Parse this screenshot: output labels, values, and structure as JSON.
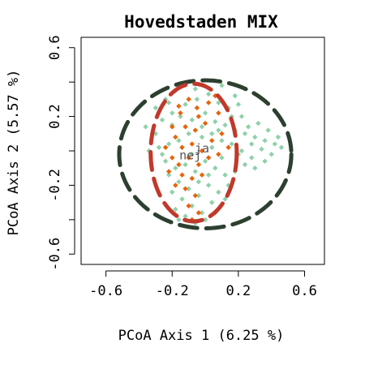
{
  "chart_data": {
    "type": "scatter",
    "title": "Hovedstaden MIX",
    "xlabel": "PCoA Axis 1 (6.25 %)",
    "ylabel": "PCoA Axis 2 (5.57 %)",
    "xlim": [
      -0.75,
      0.72
    ],
    "ylim": [
      -0.66,
      0.66
    ],
    "x_ticks": [
      -0.6,
      -0.2,
      0.2,
      0.6
    ],
    "x_tick_labels": [
      "-0.6",
      "-0.2",
      "0.2",
      "0.6"
    ],
    "y_ticks": [
      -0.6,
      -0.2,
      0.2,
      0.6
    ],
    "y_tick_labels": [
      "-0.6",
      "-0.2",
      "0.2",
      "0.6"
    ],
    "y_minor_ticks": [
      -0.4,
      0.0,
      0.4
    ],
    "grid": false,
    "legend": "none",
    "series": [
      {
        "name": "ja",
        "color": "#8fd1aa",
        "centroid": [
          -0.02,
          -0.01
        ],
        "ellipse": {
          "cx": 0.0,
          "cy": -0.02,
          "rx": 0.52,
          "ry": 0.43
        },
        "ellipse_color": "#2d4030",
        "points": [
          [
            -0.3,
            0.25
          ],
          [
            -0.22,
            0.28
          ],
          [
            -0.18,
            0.35
          ],
          [
            -0.12,
            0.27
          ],
          [
            -0.05,
            0.3
          ],
          [
            0.02,
            0.33
          ],
          [
            0.08,
            0.28
          ],
          [
            0.14,
            0.25
          ],
          [
            0.2,
            0.27
          ],
          [
            -0.26,
            0.18
          ],
          [
            -0.2,
            0.15
          ],
          [
            -0.15,
            0.2
          ],
          [
            -0.08,
            0.18
          ],
          [
            0.0,
            0.22
          ],
          [
            0.06,
            0.17
          ],
          [
            0.12,
            0.15
          ],
          [
            0.18,
            0.12
          ],
          [
            0.24,
            0.1
          ],
          [
            0.3,
            0.08
          ],
          [
            0.36,
            0.06
          ],
          [
            0.42,
            0.04
          ],
          [
            0.46,
            0.02
          ],
          [
            0.4,
            -0.02
          ],
          [
            0.34,
            0.01
          ],
          [
            0.28,
            -0.04
          ],
          [
            0.22,
            0.0
          ],
          [
            0.16,
            0.04
          ],
          [
            0.1,
            0.06
          ],
          [
            0.04,
            0.1
          ],
          [
            -0.02,
            0.08
          ],
          [
            -0.1,
            0.1
          ],
          [
            -0.16,
            0.06
          ],
          [
            -0.22,
            0.04
          ],
          [
            -0.28,
            0.02
          ],
          [
            -0.34,
            0.0
          ],
          [
            -0.24,
            -0.06
          ],
          [
            -0.18,
            -0.1
          ],
          [
            -0.12,
            -0.08
          ],
          [
            -0.06,
            -0.12
          ],
          [
            0.0,
            -0.06
          ],
          [
            0.06,
            -0.1
          ],
          [
            0.12,
            -0.14
          ],
          [
            0.18,
            -0.12
          ],
          [
            0.24,
            -0.08
          ],
          [
            0.3,
            -0.1
          ],
          [
            0.14,
            -0.2
          ],
          [
            0.08,
            -0.24
          ],
          [
            0.02,
            -0.2
          ],
          [
            -0.04,
            -0.26
          ],
          [
            -0.1,
            -0.22
          ],
          [
            -0.16,
            -0.18
          ],
          [
            -0.22,
            -0.14
          ],
          [
            -0.08,
            -0.32
          ],
          [
            -0.02,
            -0.36
          ],
          [
            0.04,
            -0.3
          ],
          [
            -0.14,
            -0.28
          ],
          [
            -0.2,
            -0.24
          ],
          [
            -0.12,
            -0.38
          ],
          [
            -0.06,
            -0.42
          ],
          [
            0.0,
            -0.4
          ],
          [
            0.06,
            -0.36
          ],
          [
            -0.18,
            -0.34
          ],
          [
            0.2,
            -0.02
          ],
          [
            0.26,
            0.14
          ],
          [
            0.32,
            0.16
          ],
          [
            0.38,
            0.12
          ],
          [
            -0.3,
            0.1
          ],
          [
            -0.36,
            0.14
          ],
          [
            -0.06,
            0.36
          ],
          [
            0.1,
            0.38
          ],
          [
            -0.02,
            0.14
          ],
          [
            0.04,
            0.02
          ],
          [
            -0.14,
            0.02
          ],
          [
            0.1,
            -0.04
          ],
          [
            0.16,
            0.2
          ],
          [
            -0.26,
            -0.02
          ],
          [
            0.44,
            0.08
          ],
          [
            0.36,
            -0.06
          ],
          [
            -0.08,
            -0.02
          ],
          [
            0.02,
            -0.14
          ],
          [
            -0.2,
            0.22
          ],
          [
            0.22,
            0.2
          ],
          [
            0.28,
            0.04
          ],
          [
            -0.12,
            0.14
          ],
          [
            0.08,
            0.12
          ],
          [
            -0.04,
            -0.18
          ],
          [
            0.12,
            -0.28
          ],
          [
            -0.24,
            0.3
          ],
          [
            0.18,
            0.32
          ],
          [
            -0.16,
            -0.4
          ]
        ]
      },
      {
        "name": "nej",
        "color": "#e8630a",
        "centroid": [
          -0.09,
          -0.05
        ],
        "ellipse": {
          "cx": -0.07,
          "cy": -0.01,
          "rx": 0.26,
          "ry": 0.4
        },
        "ellipse_color": "#c0392b",
        "points": [
          [
            -0.15,
            0.22
          ],
          [
            -0.1,
            0.3
          ],
          [
            -0.05,
            0.25
          ],
          [
            0.02,
            0.28
          ],
          [
            0.08,
            0.22
          ],
          [
            -0.12,
            0.14
          ],
          [
            -0.06,
            0.12
          ],
          [
            0.0,
            0.16
          ],
          [
            -0.18,
            0.08
          ],
          [
            -0.14,
            0.02
          ],
          [
            -0.08,
            0.04
          ],
          [
            -0.02,
            0.0
          ],
          [
            0.04,
            0.06
          ],
          [
            -0.2,
            -0.04
          ],
          [
            -0.16,
            -0.08
          ],
          [
            -0.1,
            -0.04
          ],
          [
            -0.04,
            -0.08
          ],
          [
            0.02,
            -0.04
          ],
          [
            -0.22,
            -0.12
          ],
          [
            -0.14,
            -0.14
          ],
          [
            -0.08,
            -0.16
          ],
          [
            -0.02,
            -0.14
          ],
          [
            -0.18,
            -0.2
          ],
          [
            -0.12,
            -0.22
          ],
          [
            -0.06,
            -0.26
          ],
          [
            -0.1,
            -0.32
          ],
          [
            -0.04,
            -0.36
          ],
          [
            -0.08,
            -0.4
          ],
          [
            0.1,
            0.1
          ],
          [
            0.14,
            0.02
          ],
          [
            -0.24,
            0.02
          ],
          [
            -0.04,
            0.2
          ],
          [
            0.06,
            0.32
          ],
          [
            -0.16,
            0.26
          ],
          [
            0.08,
            -0.02
          ],
          [
            -0.2,
            0.14
          ]
        ]
      }
    ]
  }
}
